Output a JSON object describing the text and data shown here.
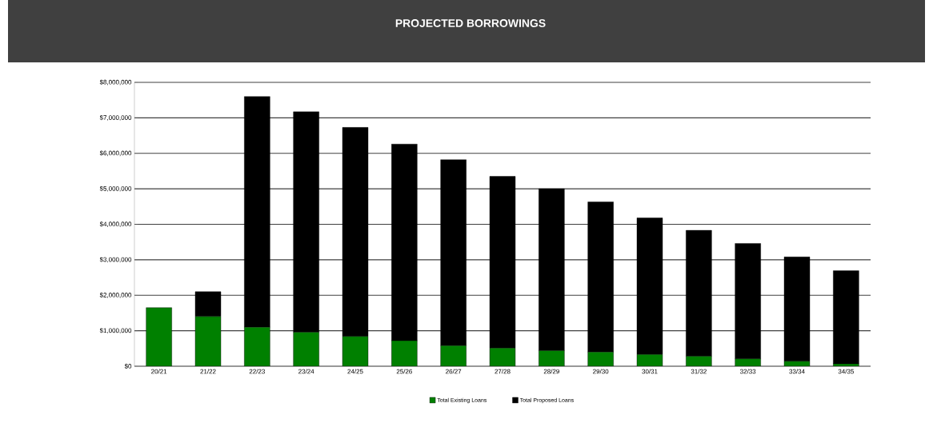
{
  "chart_data": {
    "type": "bar",
    "title": "PROJECTED BORROWINGS",
    "stacked": true,
    "categories": [
      "20/21",
      "21/22",
      "22/23",
      "23/24",
      "24/25",
      "25/26",
      "26/27",
      "27/28",
      "28/29",
      "29/30",
      "30/31",
      "31/32",
      "32/33",
      "33/34",
      "34/35"
    ],
    "series": [
      {
        "name": "Total Existing Loans",
        "color": "#008000",
        "values": [
          1650000,
          1400000,
          1100000,
          960000,
          840000,
          720000,
          580000,
          510000,
          440000,
          400000,
          330000,
          280000,
          210000,
          140000,
          70000
        ]
      },
      {
        "name": "Total Proposed Loans",
        "color": "#000000",
        "values": [
          0,
          700000,
          6500000,
          6210000,
          5890000,
          5540000,
          5240000,
          4840000,
          4560000,
          4230000,
          3850000,
          3550000,
          3250000,
          2940000,
          2620000
        ]
      }
    ],
    "ylim": [
      0,
      8000000
    ],
    "yticks": [
      {
        "value": 0,
        "label": "$0"
      },
      {
        "value": 1000000,
        "label": "$1,000,000"
      },
      {
        "value": 2000000,
        "label": "$2,000,000"
      },
      {
        "value": 3000000,
        "label": "$3,000,000"
      },
      {
        "value": 4000000,
        "label": "$4,000,000"
      },
      {
        "value": 5000000,
        "label": "$5,000,000"
      },
      {
        "value": 6000000,
        "label": "$6,000,000"
      },
      {
        "value": 7000000,
        "label": "$7,000,000"
      },
      {
        "value": 8000000,
        "label": "$8,000,000"
      }
    ],
    "grid": "y",
    "legend": "bottom"
  }
}
